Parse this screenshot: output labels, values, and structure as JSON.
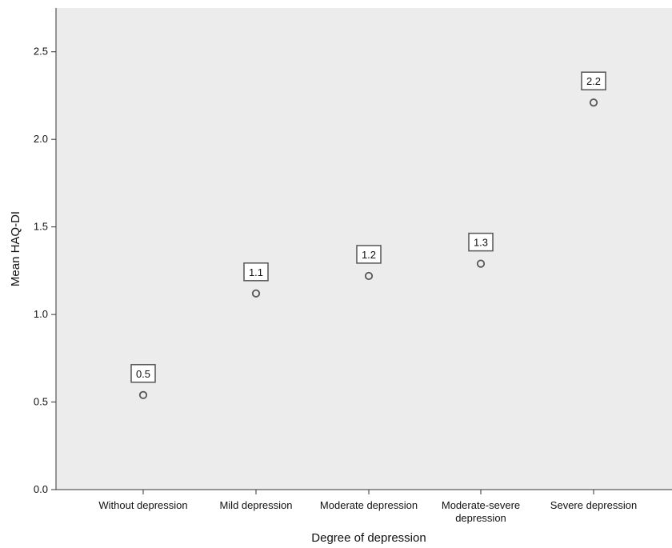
{
  "chart_data": {
    "type": "scatter",
    "title": "",
    "xlabel": "Degree of depression",
    "ylabel": "Mean HAQ-DI",
    "categories": [
      "Without depression",
      "Mild depression",
      "Moderate depression",
      "Moderate-severe depression",
      "Severe depression"
    ],
    "category_label_lines": [
      [
        "Without depression"
      ],
      [
        "Mild depression"
      ],
      [
        "Moderate depression"
      ],
      [
        "Moderate-severe",
        "depression"
      ],
      [
        "Severe depression"
      ]
    ],
    "values": [
      0.54,
      1.12,
      1.22,
      1.29,
      2.21
    ],
    "data_labels": [
      "0.5",
      "1.1",
      "1.2",
      "1.3",
      "2.2"
    ],
    "ylim": [
      0,
      2.75
    ],
    "yticks": [
      0.0,
      0.5,
      1.0,
      1.5,
      2.0,
      2.5
    ],
    "ytick_labels": [
      "0.0",
      "0.5",
      "1.0",
      "1.5",
      "2.0",
      "2.5"
    ],
    "grid": false,
    "colors": {
      "plot_background": "#ececec",
      "marker": "#555555",
      "axis": "#333333",
      "label_box_fill": "#ffffff",
      "label_box_border": "#555555"
    }
  }
}
